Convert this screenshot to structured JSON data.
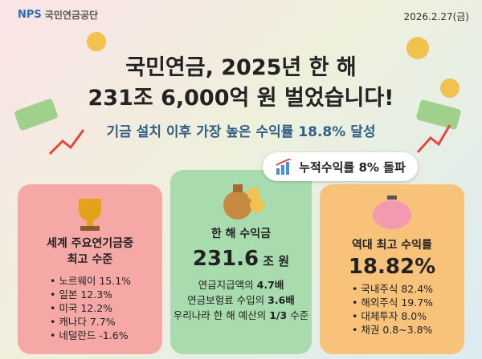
{
  "header": {
    "logo": "NPS",
    "org": "국민연금공단",
    "date": "2026.2.27(금)"
  },
  "headline": {
    "lines": [
      "국민연금, 2025년 한 해",
      "231조 6,000억 원 벌었습니다!"
    ],
    "subtitle": "기금 설치 이후 가장 높은 수익률 18.8% 달성"
  },
  "badge": "누적수익률 8% 돌파",
  "cards": [
    {
      "title": [
        "세계 주요연기금중",
        "최고 수준"
      ],
      "items": [
        "• 노르웨이 15.1%",
        "• 일본 12.3%",
        "• 미국 12.2%",
        "• 캐나다 7.7%",
        "• 네덜란드 -1.6%"
      ]
    },
    {
      "title": [
        "한 해 수익금"
      ],
      "value": "231.6",
      "unit": "조 원",
      "lines": [
        [
          "연금지급액의",
          "4.7배"
        ],
        [
          "연금보험료 수입의",
          "3.6배"
        ],
        [
          "우리나라 한 해 예산의",
          "1/3",
          "수준"
        ]
      ]
    },
    {
      "title": [
        "역대 최고 수익률"
      ],
      "value": "18.82%",
      "items": [
        "• 국내주식 82.4%",
        "• 해외주식 19.7%",
        "• 대체투자 8.0%",
        "• 채권 0.8~3.8%"
      ]
    }
  ]
}
